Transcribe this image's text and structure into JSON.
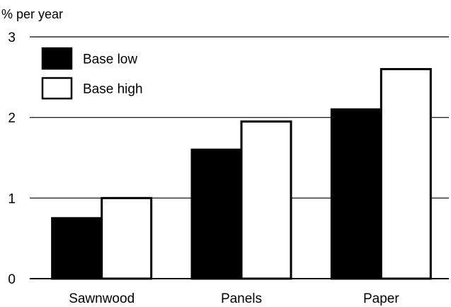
{
  "chart_data": {
    "type": "bar",
    "ylabel": "% per year",
    "xlabel": "",
    "ylim": [
      0,
      3
    ],
    "yticks": [
      0,
      1,
      2,
      3
    ],
    "grid": true,
    "legend_position": "top-left",
    "categories": [
      "Sawnwood",
      "Panels",
      "Paper"
    ],
    "series": [
      {
        "name": "Base low",
        "values": [
          0.75,
          1.6,
          2.1
        ],
        "fill": "#000000"
      },
      {
        "name": "Base high",
        "values": [
          1.0,
          1.95,
          2.6
        ],
        "fill": "#ffffff"
      }
    ]
  }
}
